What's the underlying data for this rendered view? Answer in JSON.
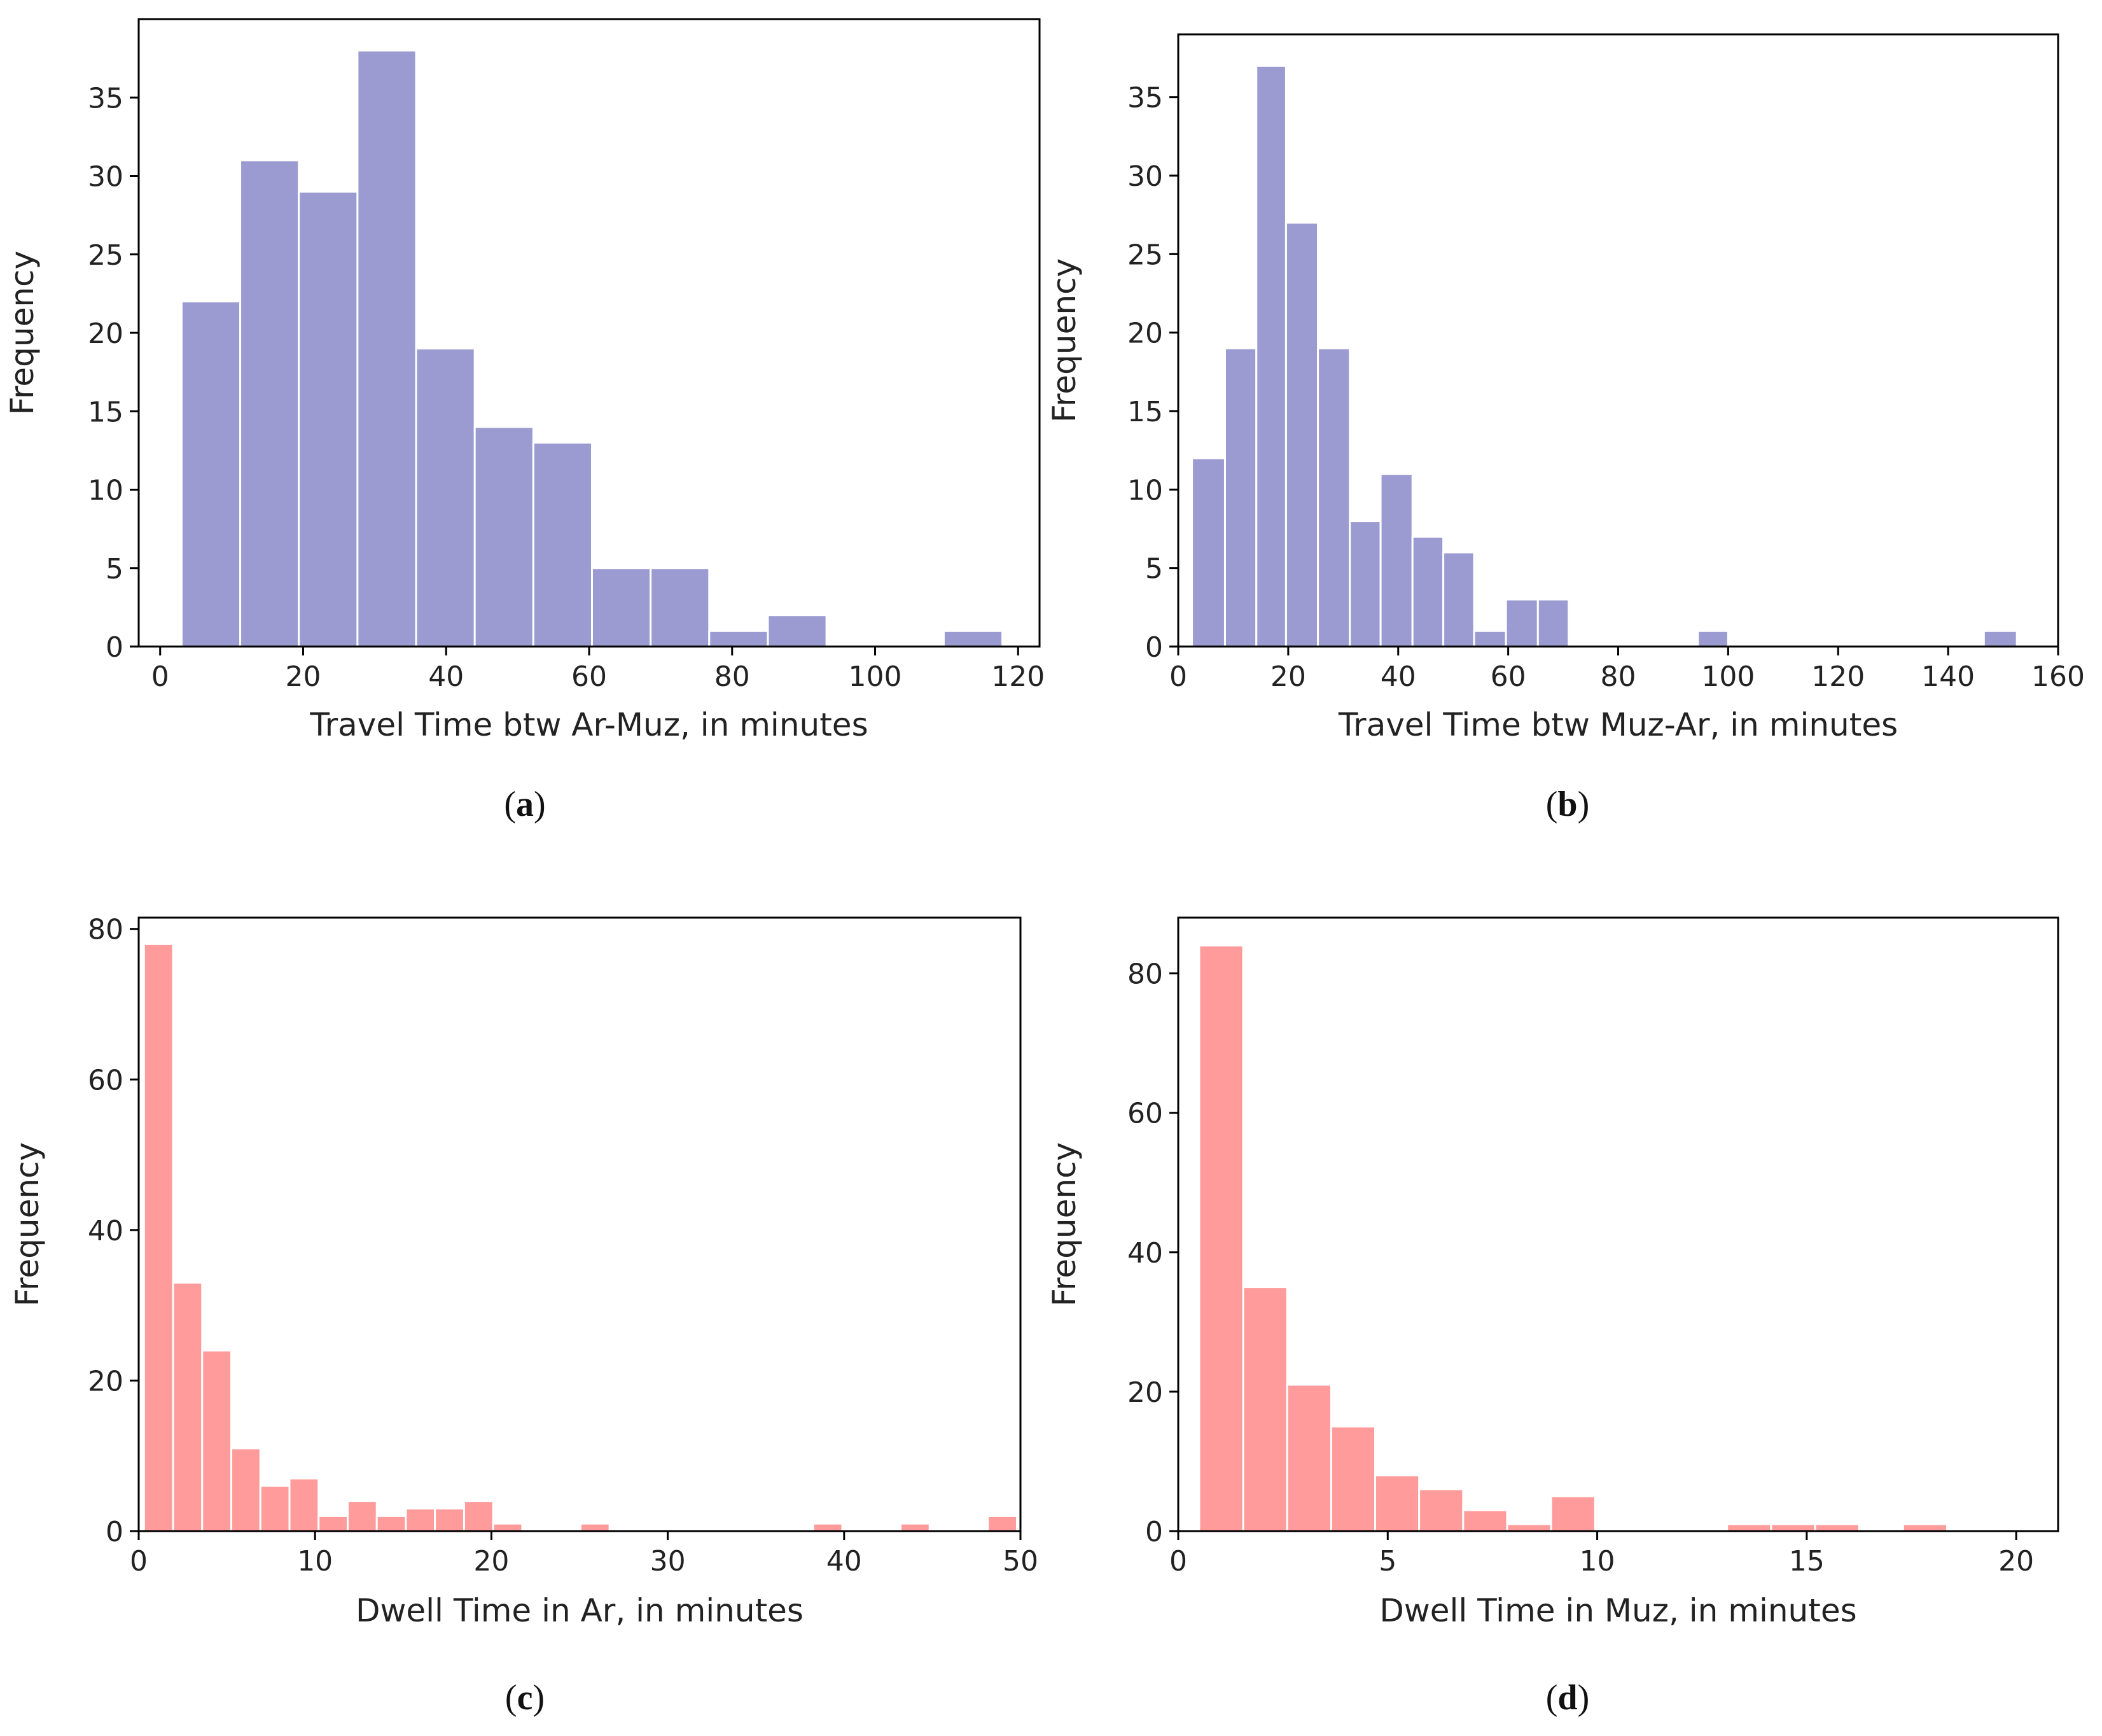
{
  "chart_data": [
    {
      "id": "a",
      "type": "bar",
      "caption": "a",
      "color": "#9b9bd1",
      "xlabel": "Travel Time btw Ar-Muz, in minutes",
      "ylabel": "Frequency",
      "xlim": [
        -3,
        123
      ],
      "ylim": [
        0,
        40
      ],
      "xticks": [
        0,
        20,
        40,
        60,
        80,
        100,
        120
      ],
      "yticks": [
        0,
        5,
        10,
        15,
        20,
        25,
        30,
        35
      ],
      "bins": [
        {
          "x0": 3,
          "x1": 11.2,
          "value": 22
        },
        {
          "x0": 11.2,
          "x1": 19.4,
          "value": 31
        },
        {
          "x0": 19.4,
          "x1": 27.6,
          "value": 29
        },
        {
          "x0": 27.6,
          "x1": 35.8,
          "value": 38
        },
        {
          "x0": 35.8,
          "x1": 44,
          "value": 19
        },
        {
          "x0": 44,
          "x1": 52.2,
          "value": 14
        },
        {
          "x0": 52.2,
          "x1": 60.4,
          "value": 13
        },
        {
          "x0": 60.4,
          "x1": 68.6,
          "value": 5
        },
        {
          "x0": 68.6,
          "x1": 76.8,
          "value": 5
        },
        {
          "x0": 76.8,
          "x1": 85,
          "value": 1
        },
        {
          "x0": 85,
          "x1": 93.2,
          "value": 2
        },
        {
          "x0": 93.2,
          "x1": 101.4,
          "value": 0
        },
        {
          "x0": 101.4,
          "x1": 109.6,
          "value": 0
        },
        {
          "x0": 109.6,
          "x1": 117.8,
          "value": 1
        }
      ]
    },
    {
      "id": "b",
      "type": "bar",
      "caption": "b",
      "color": "#9b9bd1",
      "xlabel": "Travel Time btw Muz-Ar, in minutes",
      "ylabel": "Frequency",
      "xlim": [
        0,
        160
      ],
      "ylim": [
        0,
        39
      ],
      "xticks": [
        0,
        20,
        40,
        60,
        80,
        100,
        120,
        140,
        160
      ],
      "yticks": [
        0,
        5,
        10,
        15,
        20,
        25,
        30,
        35
      ],
      "bins": [
        {
          "x0": 2.5,
          "x1": 8.5,
          "value": 12
        },
        {
          "x0": 8.5,
          "x1": 14.2,
          "value": 19
        },
        {
          "x0": 14.2,
          "x1": 19.6,
          "value": 37
        },
        {
          "x0": 19.6,
          "x1": 25.4,
          "value": 27
        },
        {
          "x0": 25.4,
          "x1": 31.2,
          "value": 19
        },
        {
          "x0": 31.2,
          "x1": 36.8,
          "value": 8
        },
        {
          "x0": 36.8,
          "x1": 42.6,
          "value": 11
        },
        {
          "x0": 42.6,
          "x1": 48.2,
          "value": 7
        },
        {
          "x0": 48.2,
          "x1": 53.8,
          "value": 6
        },
        {
          "x0": 53.8,
          "x1": 59.6,
          "value": 1
        },
        {
          "x0": 59.6,
          "x1": 65.4,
          "value": 3
        },
        {
          "x0": 65.4,
          "x1": 71,
          "value": 3
        },
        {
          "x0": 94.5,
          "x1": 100,
          "value": 1
        },
        {
          "x0": 146.5,
          "x1": 152.5,
          "value": 1
        }
      ]
    },
    {
      "id": "c",
      "type": "bar",
      "caption": "c",
      "color": "#ff9b9b",
      "xlabel": "Dwell Time in Ar, in minutes",
      "ylabel": "Frequency",
      "xlim": [
        0,
        50
      ],
      "ylim": [
        0,
        81.5
      ],
      "xticks": [
        0,
        10,
        20,
        30,
        40,
        50
      ],
      "yticks": [
        0,
        20,
        40,
        60,
        80
      ],
      "bins": [
        {
          "x0": 0.3,
          "x1": 1.95,
          "value": 78
        },
        {
          "x0": 1.95,
          "x1": 3.6,
          "value": 33
        },
        {
          "x0": 3.6,
          "x1": 5.25,
          "value": 24
        },
        {
          "x0": 5.25,
          "x1": 6.9,
          "value": 11
        },
        {
          "x0": 6.9,
          "x1": 8.55,
          "value": 6
        },
        {
          "x0": 8.55,
          "x1": 10.2,
          "value": 7
        },
        {
          "x0": 10.2,
          "x1": 11.85,
          "value": 2
        },
        {
          "x0": 11.85,
          "x1": 13.5,
          "value": 4
        },
        {
          "x0": 13.5,
          "x1": 15.15,
          "value": 2
        },
        {
          "x0": 15.15,
          "x1": 16.8,
          "value": 3
        },
        {
          "x0": 16.8,
          "x1": 18.45,
          "value": 3
        },
        {
          "x0": 18.45,
          "x1": 20.1,
          "value": 4
        },
        {
          "x0": 20.1,
          "x1": 21.75,
          "value": 1
        },
        {
          "x0": 25.05,
          "x1": 26.7,
          "value": 1
        },
        {
          "x0": 38.25,
          "x1": 39.9,
          "value": 1
        },
        {
          "x0": 43.2,
          "x1": 44.85,
          "value": 1
        },
        {
          "x0": 48.15,
          "x1": 49.8,
          "value": 2
        }
      ]
    },
    {
      "id": "d",
      "type": "bar",
      "caption": "d",
      "color": "#ff9b9b",
      "xlabel": "Dwell Time in Muz, in minutes",
      "ylabel": "Frequency",
      "xlim": [
        0,
        21
      ],
      "ylim": [
        0,
        88
      ],
      "xticks": [
        0,
        5,
        10,
        15,
        20
      ],
      "yticks": [
        0,
        20,
        40,
        60,
        80
      ],
      "bins": [
        {
          "x0": 0.5,
          "x1": 1.55,
          "value": 84
        },
        {
          "x0": 1.55,
          "x1": 2.6,
          "value": 35
        },
        {
          "x0": 2.6,
          "x1": 3.65,
          "value": 21
        },
        {
          "x0": 3.65,
          "x1": 4.7,
          "value": 15
        },
        {
          "x0": 4.7,
          "x1": 5.75,
          "value": 8
        },
        {
          "x0": 5.75,
          "x1": 6.8,
          "value": 6
        },
        {
          "x0": 6.8,
          "x1": 7.85,
          "value": 3
        },
        {
          "x0": 7.85,
          "x1": 8.9,
          "value": 1
        },
        {
          "x0": 8.9,
          "x1": 9.95,
          "value": 5
        },
        {
          "x0": 13.1,
          "x1": 14.15,
          "value": 1
        },
        {
          "x0": 14.15,
          "x1": 15.2,
          "value": 1
        },
        {
          "x0": 15.2,
          "x1": 16.25,
          "value": 1
        },
        {
          "x0": 17.3,
          "x1": 18.35,
          "value": 1
        }
      ]
    }
  ]
}
